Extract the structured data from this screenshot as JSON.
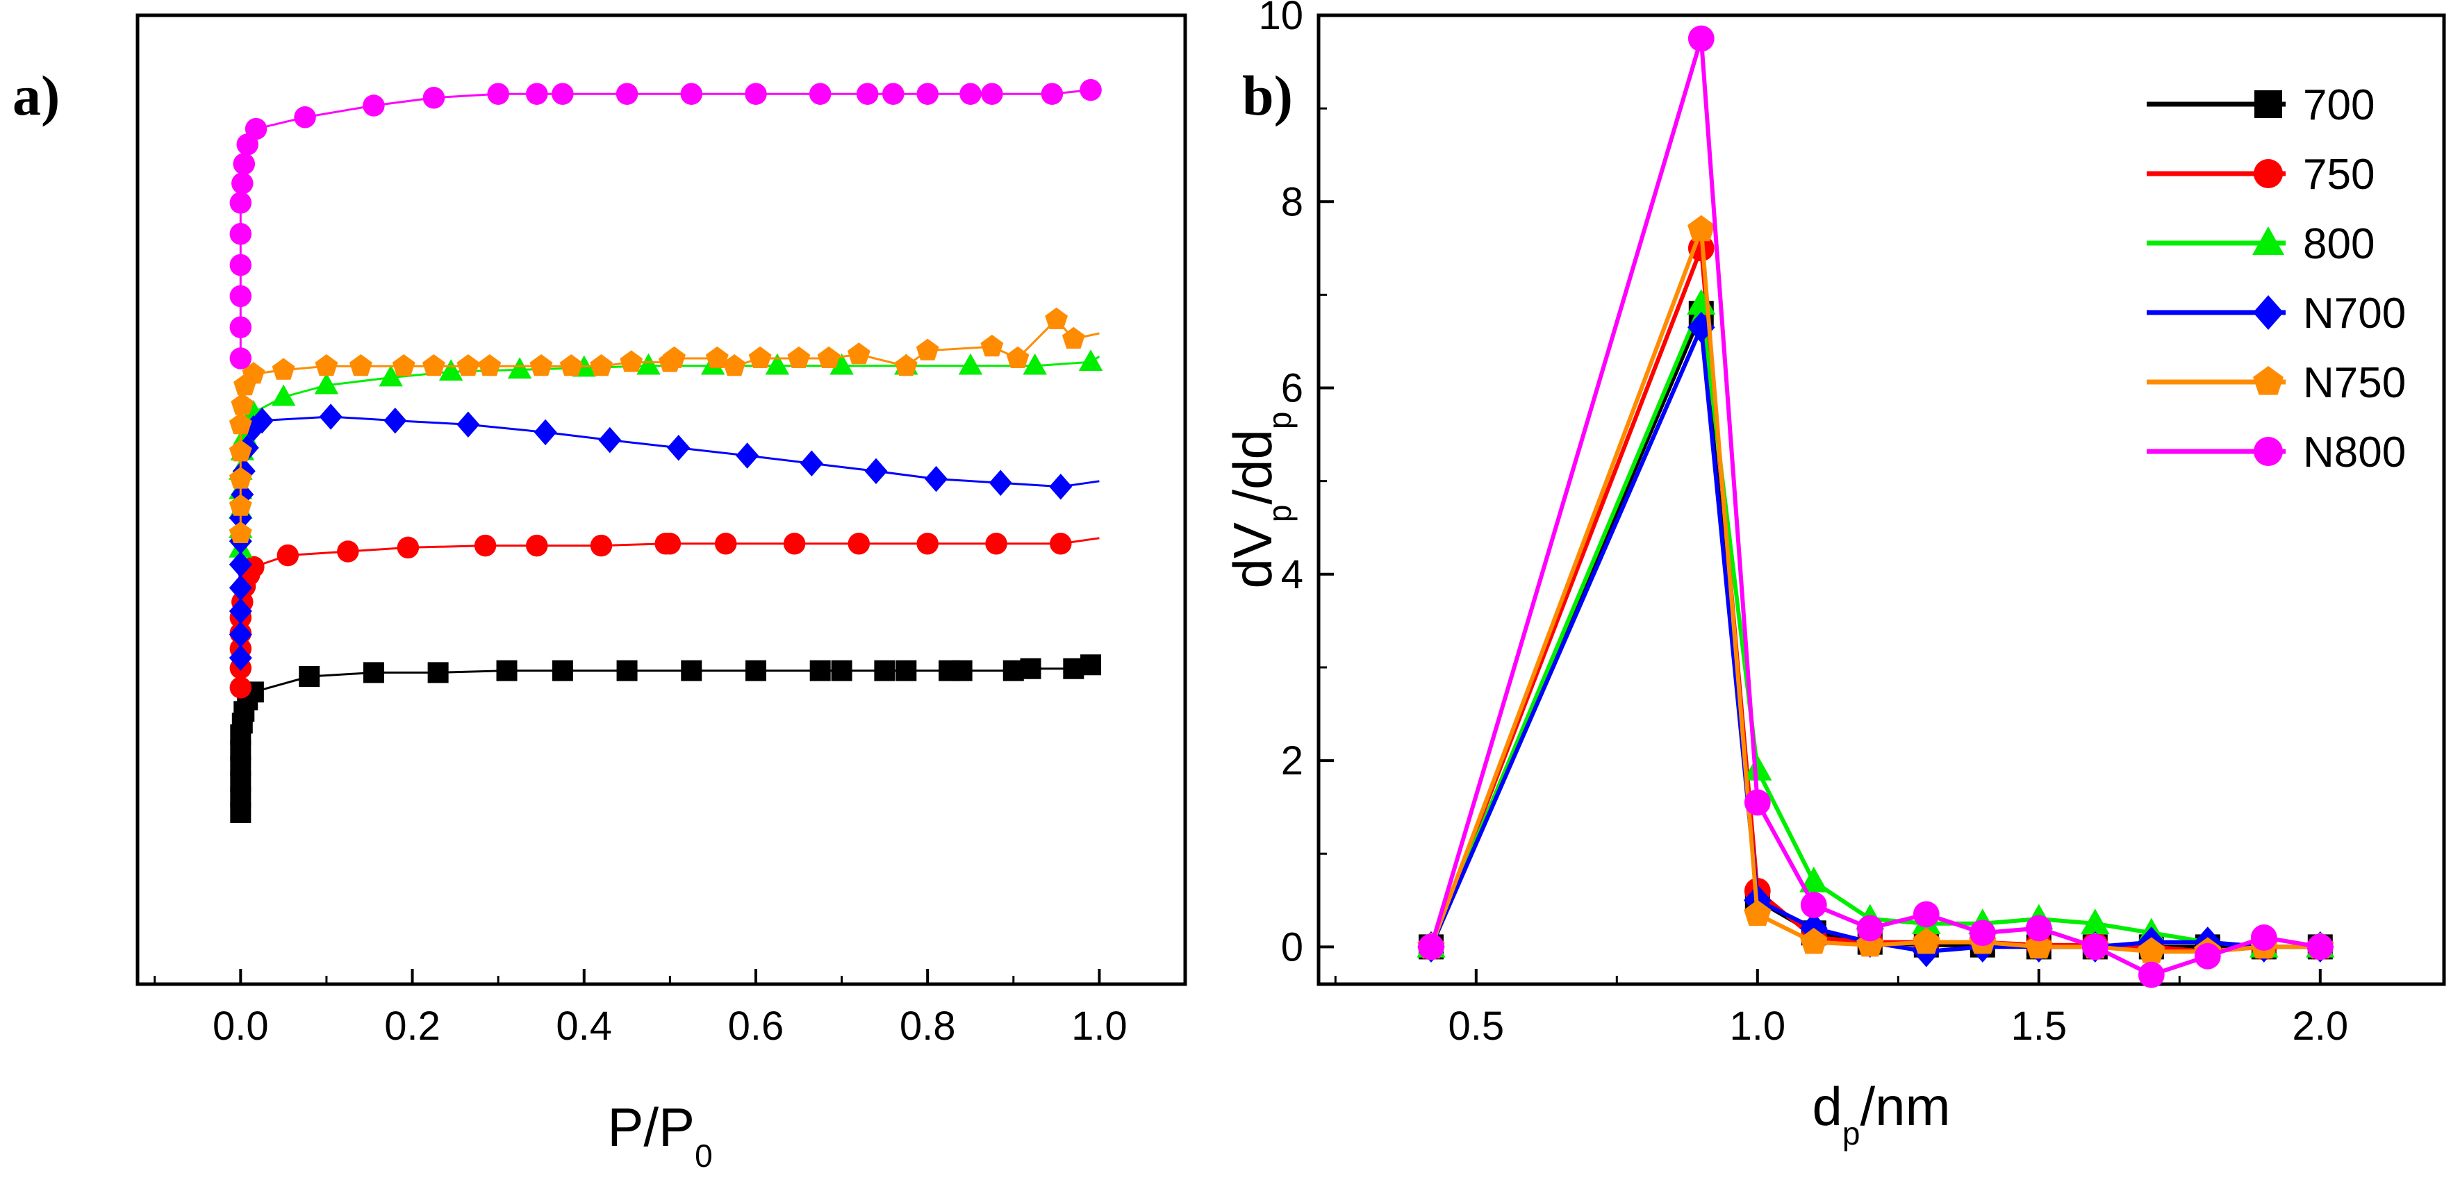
{
  "chart_data": [
    {
      "panel": "a)",
      "type": "scatter",
      "xlabel_main": "P/P",
      "xlabel_sub": "0",
      "ylabel": "",
      "xlim": [
        -0.12,
        1.1
      ],
      "xticks": [
        "0.0",
        "0.2",
        "0.4",
        "0.6",
        "0.8",
        "1.0"
      ],
      "y_ticks_shown": false,
      "series": [
        {
          "name": "700",
          "color": "#000000",
          "marker": "square",
          "offset": 0,
          "x": [
            0.0,
            0.0,
            0.0,
            0.0,
            0.0,
            0.0,
            0.002,
            0.004,
            0.008,
            0.015,
            0.08,
            0.155,
            0.23,
            0.31,
            0.375,
            0.45,
            0.525,
            0.6,
            0.675,
            0.7,
            0.75,
            0.775,
            0.825,
            0.84,
            0.9,
            0.92,
            0.97,
            0.99
          ],
          "y": [
            0.0,
            0.04,
            0.08,
            0.12,
            0.16,
            0.2,
            0.23,
            0.26,
            0.29,
            0.31,
            0.35,
            0.36,
            0.36,
            0.365,
            0.365,
            0.365,
            0.365,
            0.365,
            0.365,
            0.365,
            0.365,
            0.365,
            0.365,
            0.365,
            0.365,
            0.37,
            0.37,
            0.38
          ]
        },
        {
          "name": "750",
          "color": "#ff0000",
          "marker": "circle",
          "offset": 1,
          "x": [
            0.0,
            0.0,
            0.0,
            0.0,
            0.0,
            0.002,
            0.005,
            0.01,
            0.015,
            0.055,
            0.125,
            0.195,
            0.285,
            0.345,
            0.42,
            0.495,
            0.5,
            0.565,
            0.645,
            0.72,
            0.8,
            0.88,
            0.955
          ],
          "y": [
            0.0,
            0.05,
            0.1,
            0.14,
            0.18,
            0.22,
            0.26,
            0.29,
            0.31,
            0.34,
            0.35,
            0.36,
            0.365,
            0.365,
            0.365,
            0.37,
            0.37,
            0.37,
            0.37,
            0.37,
            0.37,
            0.37,
            0.37
          ]
        },
        {
          "name": "800",
          "color": "#00ee00",
          "marker": "triangle",
          "offset": 2,
          "x": [
            0.0,
            0.0,
            0.0,
            0.0,
            0.0,
            0.002,
            0.005,
            0.01,
            0.015,
            0.05,
            0.1,
            0.175,
            0.245,
            0.325,
            0.4,
            0.475,
            0.55,
            0.625,
            0.7,
            0.775,
            0.85,
            0.925,
            0.99
          ],
          "y": [
            0.0,
            0.05,
            0.1,
            0.15,
            0.2,
            0.25,
            0.29,
            0.32,
            0.35,
            0.39,
            0.42,
            0.44,
            0.455,
            0.46,
            0.465,
            0.47,
            0.47,
            0.47,
            0.47,
            0.47,
            0.47,
            0.47,
            0.48
          ]
        },
        {
          "name": "N700",
          "color": "#0000ff",
          "marker": "diamond",
          "offset": 3,
          "x": [
            0.0,
            0.0,
            0.0,
            0.0,
            0.0,
            0.0,
            0.0,
            0.002,
            0.004,
            0.008,
            0.015,
            0.025,
            0.105,
            0.18,
            0.265,
            0.355,
            0.43,
            0.51,
            0.59,
            0.665,
            0.74,
            0.81,
            0.885,
            0.955
          ],
          "y": [
            -0.62,
            -0.56,
            -0.5,
            -0.44,
            -0.38,
            -0.32,
            -0.26,
            -0.2,
            -0.14,
            -0.08,
            -0.03,
            -0.01,
            0.0,
            -0.01,
            -0.02,
            -0.04,
            -0.06,
            -0.08,
            -0.1,
            -0.12,
            -0.14,
            -0.16,
            -0.17,
            -0.18
          ]
        },
        {
          "name": "N750",
          "color": "#ff8c00",
          "marker": "pentagon",
          "offset": 4,
          "x": [
            0.0,
            0.0,
            0.0,
            0.0,
            0.0,
            0.002,
            0.005,
            0.015,
            0.05,
            0.1,
            0.14,
            0.19,
            0.225,
            0.265,
            0.29,
            0.35,
            0.385,
            0.42,
            0.455,
            0.5,
            0.505,
            0.555,
            0.575,
            0.605,
            0.65,
            0.685,
            0.72,
            0.775,
            0.8,
            0.875,
            0.905,
            0.95,
            0.97
          ],
          "y": [
            -0.55,
            -0.48,
            -0.41,
            -0.34,
            -0.27,
            -0.22,
            -0.17,
            -0.14,
            -0.13,
            -0.12,
            -0.12,
            -0.12,
            -0.12,
            -0.12,
            -0.12,
            -0.12,
            -0.12,
            -0.12,
            -0.11,
            -0.11,
            -0.1,
            -0.1,
            -0.12,
            -0.1,
            -0.1,
            -0.1,
            -0.09,
            -0.12,
            -0.08,
            -0.07,
            -0.1,
            0.0,
            -0.05
          ]
        },
        {
          "name": "N800",
          "color": "#ff00ff",
          "marker": "circle",
          "offset": 5,
          "x": [
            0.0,
            0.0,
            0.0,
            0.0,
            0.0,
            0.0,
            0.002,
            0.004,
            0.008,
            0.018,
            0.075,
            0.155,
            0.225,
            0.3,
            0.345,
            0.375,
            0.45,
            0.525,
            0.6,
            0.675,
            0.73,
            0.76,
            0.8,
            0.85,
            0.875,
            0.945,
            0.99
          ],
          "y": [
            -0.6,
            -0.52,
            -0.44,
            -0.36,
            -0.28,
            -0.2,
            -0.15,
            -0.1,
            -0.05,
            -0.01,
            0.02,
            0.05,
            0.07,
            0.08,
            0.08,
            0.08,
            0.08,
            0.08,
            0.08,
            0.08,
            0.08,
            0.08,
            0.08,
            0.08,
            0.08,
            0.08,
            0.09
          ]
        }
      ]
    },
    {
      "panel": "b)",
      "type": "line",
      "xlabel_main": "d",
      "xlabel_sub": "p",
      "xlabel_suffix": "/nm",
      "ylabel_parts": [
        "dV",
        "p",
        "/dd",
        "p"
      ],
      "xlim": [
        0.22,
        2.22
      ],
      "ylim": [
        -0.4,
        10
      ],
      "xticks": [
        "0.5",
        "1.0",
        "1.5",
        "2.0"
      ],
      "yticks": [
        "0",
        "2",
        "4",
        "6",
        "8",
        "10"
      ],
      "legend_position": "top-right",
      "series": [
        {
          "name": "700",
          "color": "#000000",
          "marker": "square",
          "x": [
            0.42,
            0.9,
            1.0,
            1.1,
            1.2,
            1.3,
            1.4,
            1.5,
            1.6,
            1.7,
            1.8,
            1.9,
            2.0
          ],
          "y": [
            0.0,
            6.8,
            0.5,
            0.15,
            0.05,
            0.02,
            0.02,
            0.0,
            0.0,
            0.0,
            0.0,
            0.0,
            0.0
          ]
        },
        {
          "name": "750",
          "color": "#ff0000",
          "marker": "circle",
          "x": [
            0.42,
            0.9,
            1.0,
            1.1,
            1.2,
            1.3,
            1.4,
            1.5,
            1.6,
            1.7,
            1.8,
            1.9,
            2.0
          ],
          "y": [
            0.0,
            7.5,
            0.6,
            0.1,
            0.05,
            0.05,
            0.05,
            0.02,
            0.02,
            0.0,
            -0.05,
            0.0,
            0.0
          ]
        },
        {
          "name": "800",
          "color": "#00ee00",
          "marker": "triangle",
          "x": [
            0.42,
            0.9,
            1.0,
            1.1,
            1.2,
            1.3,
            1.4,
            1.5,
            1.6,
            1.7,
            1.8,
            1.9,
            2.0
          ],
          "y": [
            0.0,
            6.9,
            1.9,
            0.7,
            0.3,
            0.25,
            0.25,
            0.3,
            0.25,
            0.15,
            0.05,
            0.0,
            0.0
          ]
        },
        {
          "name": "N700",
          "color": "#0000ff",
          "marker": "diamond",
          "x": [
            0.42,
            0.9,
            1.0,
            1.1,
            1.2,
            1.3,
            1.4,
            1.5,
            1.6,
            1.7,
            1.8,
            1.9,
            2.0
          ],
          "y": [
            0.0,
            6.65,
            0.5,
            0.2,
            0.05,
            -0.05,
            0.0,
            0.0,
            0.0,
            0.05,
            0.05,
            0.0,
            0.0
          ]
        },
        {
          "name": "N750",
          "color": "#ff8c00",
          "marker": "pentagon",
          "x": [
            0.42,
            0.9,
            1.0,
            1.1,
            1.2,
            1.3,
            1.4,
            1.5,
            1.6,
            1.7,
            1.8,
            1.9,
            2.0
          ],
          "y": [
            0.0,
            7.7,
            0.35,
            0.05,
            0.02,
            0.05,
            0.05,
            0.0,
            0.0,
            -0.05,
            -0.05,
            0.0,
            0.0
          ]
        },
        {
          "name": "N800",
          "color": "#ff00ff",
          "marker": "circle",
          "x": [
            0.42,
            0.9,
            1.0,
            1.1,
            1.2,
            1.3,
            1.4,
            1.5,
            1.6,
            1.7,
            1.8,
            1.9,
            2.0
          ],
          "y": [
            0.0,
            9.75,
            1.55,
            0.45,
            0.2,
            0.35,
            0.15,
            0.2,
            0.0,
            -0.3,
            -0.1,
            0.1,
            0.0
          ]
        }
      ]
    }
  ]
}
